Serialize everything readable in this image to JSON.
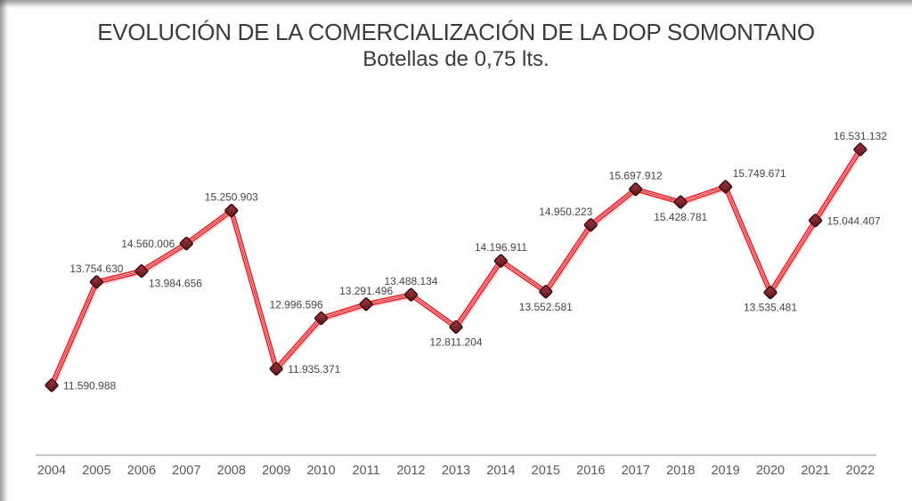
{
  "chart_data": {
    "type": "line",
    "title": "EVOLUCIÓN DE LA COMERCIALIZACIÓN DE LA DOP SOMONTANO",
    "subtitle": "Botellas de 0,75 lts.",
    "categories": [
      "2004",
      "2005",
      "2006",
      "2007",
      "2008",
      "2009",
      "2010",
      "2011",
      "2012",
      "2013",
      "2014",
      "2015",
      "2016",
      "2017",
      "2018",
      "2019",
      "2020",
      "2021",
      "2022"
    ],
    "values": [
      11590988,
      13754630,
      13984656,
      14560006,
      15250903,
      11935371,
      12996596,
      13291496,
      13488134,
      12811204,
      14196911,
      13552581,
      14950223,
      15697912,
      15428781,
      15749671,
      13535481,
      15044407,
      16531132
    ],
    "value_labels": [
      "11.590.988",
      "13.754.630",
      "13.984.656",
      "14.560.006",
      "15.250.903",
      "11.935.371",
      "12.996.596",
      "13.291.496",
      "13.488.134",
      "12.811.204",
      "14.196.911",
      "13.552.581",
      "14.950.223",
      "15.697.912",
      "15.428.781",
      "15.749.671",
      "13.535.481",
      "15.044.407",
      "16.531.132"
    ],
    "label_positions": [
      "right",
      "above",
      "below-right",
      "left",
      "above",
      "right",
      "above-left",
      "above",
      "above",
      "below",
      "above",
      "below",
      "above-left",
      "above",
      "below",
      "above-right",
      "below",
      "right",
      "above"
    ],
    "line_color": "#ed1c24",
    "line_highlight_color": "#ffffff",
    "line_shadow_color": "#ffc4c4",
    "marker_shape": "diamond",
    "marker_fill_light": "#a03a40",
    "marker_fill_dark": "#5c151a",
    "marker_stroke": "#3c0c10",
    "axis_line_color": "#b5b5b5",
    "grid": false,
    "legend": false
  }
}
